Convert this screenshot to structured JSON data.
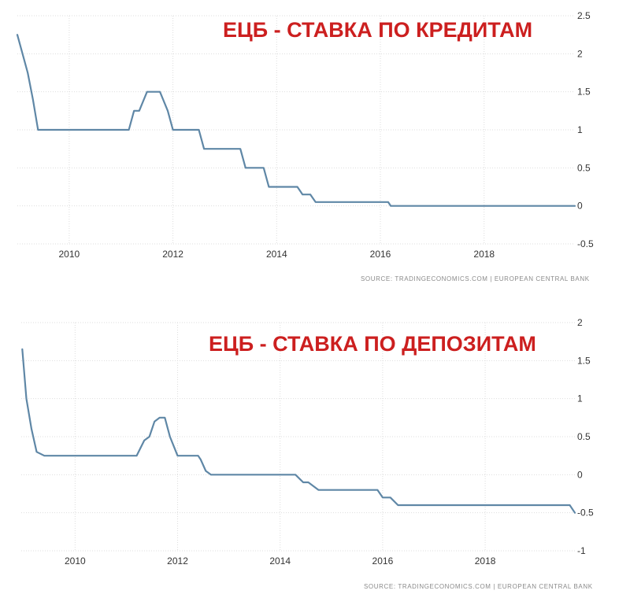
{
  "colors": {
    "line": "#5f87a6",
    "title": "#cc1f1f",
    "grid": "#dddddd"
  },
  "source": "SOURCE: TRADINGECONOMICS.COM | EUROPEAN CENTRAL BANK",
  "chart_data": [
    {
      "type": "line",
      "title": "ЕЦБ - СТАВКА ПО КРЕДИТАМ",
      "xlabel": "",
      "ylabel": "",
      "xlim": [
        2009.0,
        2019.75
      ],
      "ylim": [
        -0.5,
        2.5
      ],
      "x_ticks": [
        2010,
        2012,
        2014,
        2016,
        2018
      ],
      "x_tick_labels": [
        "2010",
        "2012",
        "2014",
        "2016",
        "2018"
      ],
      "y_ticks": [
        2.5,
        2,
        1.5,
        1,
        0.5,
        0,
        -0.5
      ],
      "y_tick_labels": [
        "2.5",
        "2",
        "1.5",
        "1",
        "0.5",
        "0",
        "-0.5"
      ],
      "grid": "dotted",
      "series": [
        {
          "x": [
            2009.0,
            2009.1,
            2009.2,
            2009.3,
            2009.4,
            2011.15,
            2011.25,
            2011.35,
            2011.5,
            2011.55,
            2011.75,
            2011.9,
            2012.0,
            2012.5,
            2012.6,
            2013.3,
            2013.4,
            2013.75,
            2013.85,
            2014.4,
            2014.5,
            2014.65,
            2014.75,
            2016.15,
            2016.2,
            2019.75
          ],
          "y": [
            2.25,
            2.0,
            1.75,
            1.4,
            1.0,
            1.0,
            1.25,
            1.25,
            1.5,
            1.5,
            1.5,
            1.25,
            1.0,
            1.0,
            0.75,
            0.75,
            0.5,
            0.5,
            0.25,
            0.25,
            0.15,
            0.15,
            0.05,
            0.05,
            0.0,
            0.0
          ]
        }
      ]
    },
    {
      "type": "line",
      "title": "ЕЦБ - СТАВКА ПО ДЕПОЗИТАМ",
      "xlabel": "",
      "ylabel": "",
      "xlim": [
        2008.95,
        2019.75
      ],
      "ylim": [
        -1,
        2
      ],
      "x_ticks": [
        2010,
        2012,
        2014,
        2016,
        2018
      ],
      "x_tick_labels": [
        "2010",
        "2012",
        "2014",
        "2016",
        "2018"
      ],
      "y_ticks": [
        2,
        1.5,
        1,
        0.5,
        0,
        -0.5,
        -1
      ],
      "y_tick_labels": [
        "2",
        "1.5",
        "1",
        "0.5",
        "0",
        "-0.5",
        "-1"
      ],
      "grid": "dotted",
      "series": [
        {
          "x": [
            2008.97,
            2009.05,
            2009.15,
            2009.25,
            2009.4,
            2011.2,
            2011.35,
            2011.45,
            2011.55,
            2011.65,
            2011.75,
            2011.85,
            2012.0,
            2012.4,
            2012.45,
            2012.55,
            2012.65,
            2014.3,
            2014.45,
            2014.55,
            2014.75,
            2015.9,
            2016.0,
            2016.15,
            2016.3,
            2019.65,
            2019.75
          ],
          "y": [
            1.65,
            1.0,
            0.6,
            0.3,
            0.25,
            0.25,
            0.45,
            0.5,
            0.7,
            0.75,
            0.75,
            0.5,
            0.25,
            0.25,
            0.2,
            0.05,
            0.0,
            0.0,
            -0.1,
            -0.1,
            -0.2,
            -0.2,
            -0.3,
            -0.3,
            -0.4,
            -0.4,
            -0.5
          ]
        }
      ]
    }
  ]
}
